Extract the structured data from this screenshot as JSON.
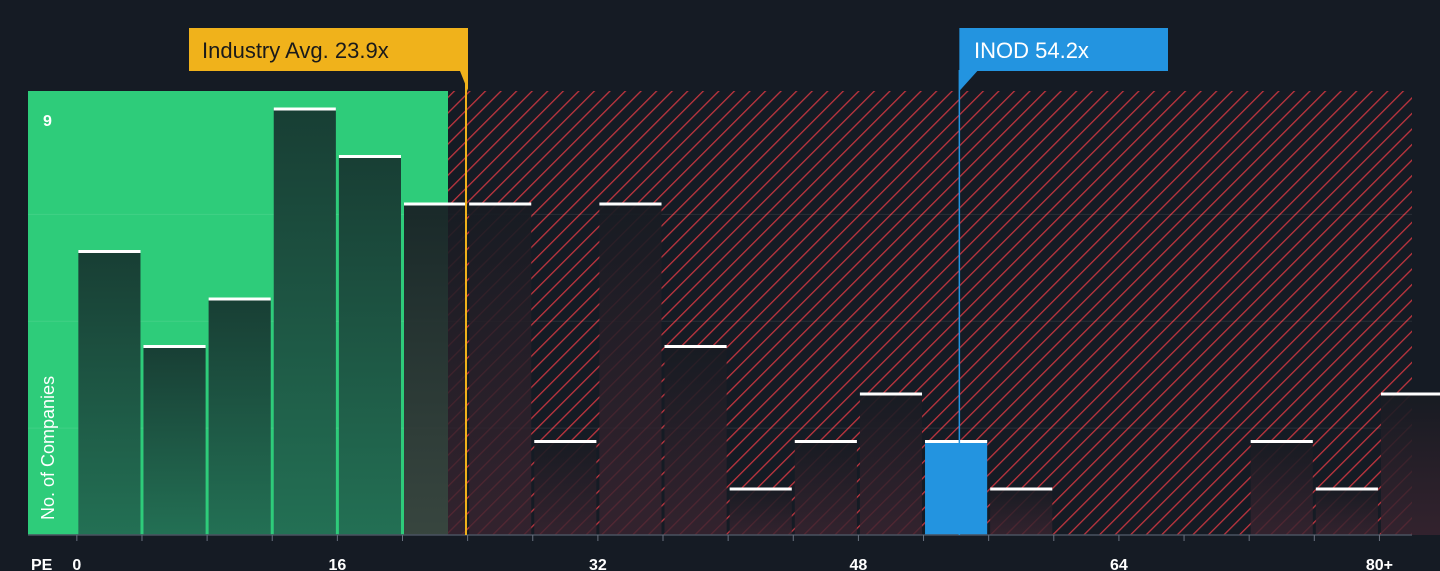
{
  "chart_data": {
    "type": "bar",
    "xlabel": "PE",
    "ylabel": "No. of Companies",
    "x_ticks": [
      "0",
      "16",
      "32",
      "48",
      "64",
      "80+"
    ],
    "x_tick_values": [
      0,
      16,
      32,
      48,
      64,
      80
    ],
    "xlim": [
      -3,
      82
    ],
    "ylim": [
      0,
      9
    ],
    "y_tick_labels": [
      "9"
    ],
    "y_tick_values": [
      9
    ],
    "bin_width": 4,
    "bins_start": [
      0,
      4,
      8,
      12,
      16,
      20,
      24,
      28,
      32,
      36,
      40,
      44,
      48,
      52,
      56,
      60,
      64,
      68,
      72,
      76,
      80
    ],
    "values": [
      6,
      4,
      5,
      9,
      8,
      7,
      7,
      2,
      7,
      4,
      1,
      2,
      3,
      2,
      1,
      0,
      0,
      0,
      2,
      1,
      3
    ],
    "industry_avg": {
      "label": "Industry Avg. 23.9x",
      "value": 23.9
    },
    "company": {
      "label": "INOD 54.2x",
      "value": 54.2,
      "bin_index": 13
    },
    "colors": {
      "background": "#151b24",
      "below_avg_zone": "#2ecc7a",
      "below_avg_bar": "#1b4a3b",
      "above_avg_hatch": "#c0353f",
      "above_avg_bar": "#2a1e26",
      "industry_callout": "#f0b21b",
      "company_callout": "#2394e0",
      "bar_cap": "#ffffff"
    }
  }
}
